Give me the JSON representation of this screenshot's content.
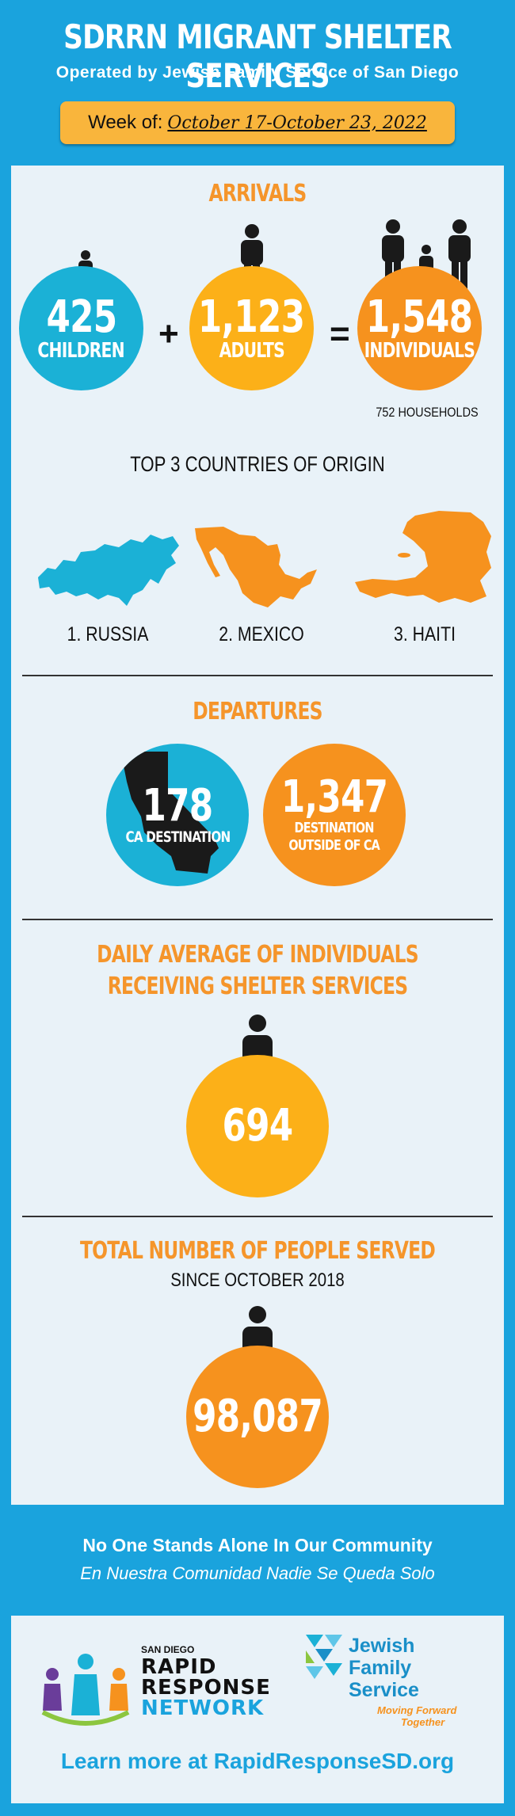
{
  "header": {
    "title": "SDRRN MIGRANT SHELTER SERVICES",
    "subtitle": "Operated by Jewish Family Service of San Diego",
    "week_label": "Week of:",
    "week_dates": "October 17-October 23, 2022"
  },
  "arrivals": {
    "heading": "ARRIVALS",
    "children_value": "425",
    "children_label": "CHILDREN",
    "plus": "+",
    "adults_value": "1,123",
    "adults_label": "ADULTS",
    "equals": "=",
    "individuals_value": "1,548",
    "individuals_label": "INDIVIDUALS",
    "households": "752 HOUSEHOLDS"
  },
  "origins": {
    "heading": "TOP 3 COUNTRIES OF ORIGIN",
    "countries": [
      "1. RUSSIA",
      "2. MEXICO",
      "3. HAITI"
    ]
  },
  "departures": {
    "heading": "DEPARTURES",
    "ca_value": "178",
    "ca_label": "CA DESTINATION",
    "outside_value": "1,347",
    "outside_label_line1": "DESTINATION",
    "outside_label_line2": "OUTSIDE OF CA"
  },
  "daily": {
    "heading_line1": "DAILY AVERAGE OF INDIVIDUALS",
    "heading_line2": "RECEIVING SHELTER SERVICES",
    "value": "694"
  },
  "total": {
    "heading": "TOTAL NUMBER OF PEOPLE SERVED",
    "subheading": "SINCE OCTOBER 2018",
    "value": "98,087"
  },
  "footer": {
    "tagline_en": "No One Stands Alone In Our Community",
    "tagline_es": "En Nuestra Comunidad Nadie Se Queda Solo",
    "rrn_small": "SAN DIEGO",
    "rrn_line1": "RAPID",
    "rrn_line2": "RESPONSE",
    "rrn_line3": "NETWORK",
    "jfs_line1": "Jewish",
    "jfs_line2": "Family",
    "jfs_line3": "Service",
    "jfs_tag1": "Moving Forward",
    "jfs_tag2": "Together",
    "learn_more": "Learn more at RapidResponseSD.org"
  },
  "colors": {
    "background": "#1aa3dd",
    "panel": "#e9f2f8",
    "cyan": "#1bb1d6",
    "orange": "#f6921e",
    "yellow": "#fcb018",
    "heading_orange": "#f5952b",
    "week_box": "#f9b53c"
  },
  "icons": [
    "person-icon",
    "family-icon",
    "russia-map",
    "mexico-map",
    "haiti-map",
    "california-map"
  ]
}
